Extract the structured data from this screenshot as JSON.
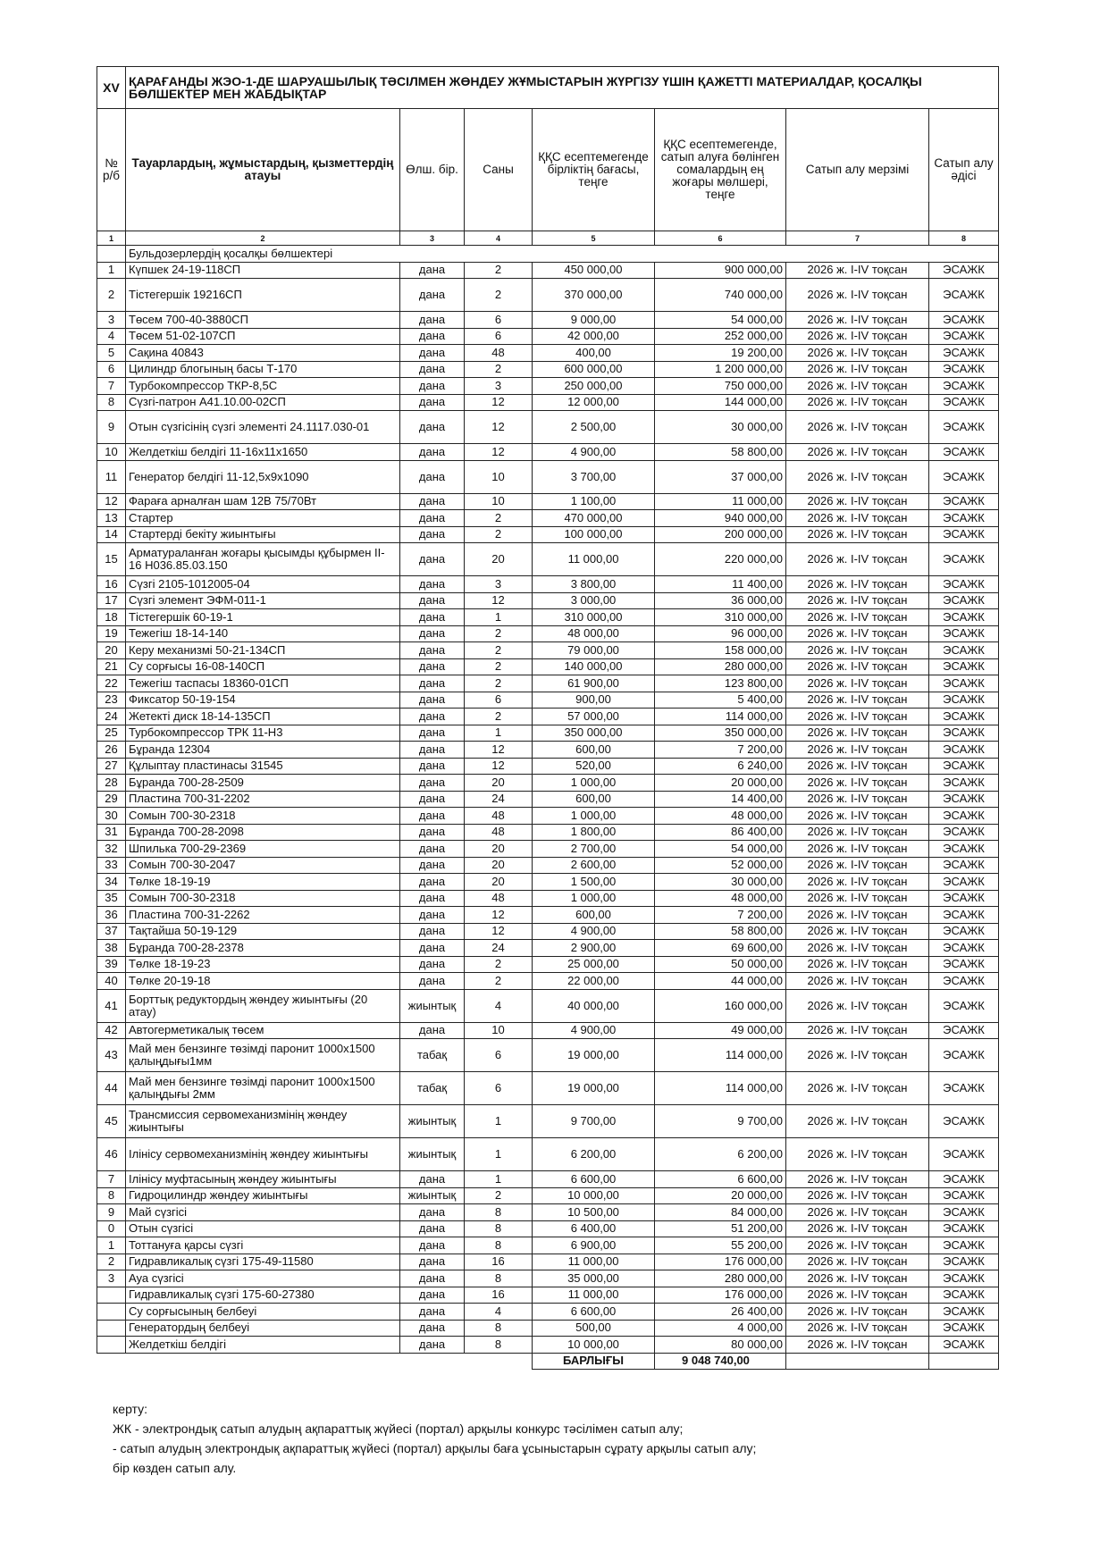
{
  "header": {
    "section_no": "XV",
    "title": "ҚАРАҒАНДЫ ЖЭО-1-ДЕ ШАРУАШЫЛЫҚ ТӘСІЛМЕН ЖӨНДЕУ ЖҰМЫСТАРЫН ЖҮРГІЗУ ҮШІН ҚАЖЕТТІ МАТЕРИАЛДАР, ҚОСАЛҚЫ БӨЛШЕКТЕР МЕН ЖАБДЫҚТАР"
  },
  "table": {
    "columns": [
      "№ р/б",
      "Тауарлардың, жұмыстардың, қызметтердің атауы",
      "Өлш. бір.",
      "Саны",
      "ҚҚС есептемегенде бірліктің бағасы, теңге",
      "ҚҚС есептемегенде, сатып алуға бөлінген сомалардың ең жоғары мөлшері, теңге",
      "Сатып алу мерзімі",
      "Сатып алу әдісі"
    ],
    "column_numbers": [
      "1",
      "2",
      "3",
      "4",
      "5",
      "6",
      "7",
      "8"
    ],
    "section": "Бульдозерлердің қосалқы бөлшектері",
    "rows": [
      [
        "1",
        "Күпшек 24-19-118СП",
        "дана",
        "2",
        "450 000,00",
        "900 000,00",
        "2026 ж. I-IV тоқсан",
        "ЭСАЖК"
      ],
      [
        "2",
        "Тістегершік 19216СП",
        "дана",
        "2",
        "370 000,00",
        "740 000,00",
        "2026 ж. I-IV тоқсан",
        "ЭСАЖК"
      ],
      [
        "3",
        "Төсем 700-40-3880СП",
        "дана",
        "6",
        "9 000,00",
        "54 000,00",
        "2026 ж. I-IV тоқсан",
        "ЭСАЖК"
      ],
      [
        "4",
        "Төсем 51-02-107СП",
        "дана",
        "6",
        "42 000,00",
        "252 000,00",
        "2026 ж. I-IV тоқсан",
        "ЭСАЖК"
      ],
      [
        "5",
        "Сақина 40843",
        "дана",
        "48",
        "400,00",
        "19 200,00",
        "2026 ж. I-IV тоқсан",
        "ЭСАЖК"
      ],
      [
        "6",
        "Цилиндр блогының басы Т-170",
        "дана",
        "2",
        "600 000,00",
        "1 200 000,00",
        "2026 ж. I-IV тоқсан",
        "ЭСАЖК"
      ],
      [
        "7",
        "Турбокомпрессор ТКР-8,5С",
        "дана",
        "3",
        "250 000,00",
        "750 000,00",
        "2026 ж. I-IV тоқсан",
        "ЭСАЖК"
      ],
      [
        "8",
        "Сүзгі-патрон А41.10.00-02СП",
        "дана",
        "12",
        "12 000,00",
        "144 000,00",
        "2026 ж. I-IV тоқсан",
        "ЭСАЖК"
      ],
      [
        "9",
        "Отын сүзгісінің сүзгі элементі 24.1117.030-01",
        "дана",
        "12",
        "2 500,00",
        "30 000,00",
        "2026 ж. I-IV тоқсан",
        "ЭСАЖК"
      ],
      [
        "10",
        "Желдеткіш белдігі 11-16х11х1650",
        "дана",
        "12",
        "4 900,00",
        "58 800,00",
        "2026 ж. I-IV тоқсан",
        "ЭСАЖК"
      ],
      [
        "11",
        "Генератор белдігі 11-12,5х9х1090",
        "дана",
        "10",
        "3 700,00",
        "37 000,00",
        "2026 ж. I-IV тоқсан",
        "ЭСАЖК"
      ],
      [
        "12",
        "Фараға арналған шам 12В 75/70Вт",
        "дана",
        "10",
        "1 100,00",
        "11 000,00",
        "2026 ж. I-IV тоқсан",
        "ЭСАЖК"
      ],
      [
        "13",
        "Стартер",
        "дана",
        "2",
        "470 000,00",
        "940 000,00",
        "2026 ж. I-IV тоқсан",
        "ЭСАЖК"
      ],
      [
        "14",
        "Стартерді бекіту жиынтығы",
        "дана",
        "2",
        "100 000,00",
        "200 000,00",
        "2026 ж. I-IV тоқсан",
        "ЭСАЖК"
      ],
      [
        "15",
        "Арматураланған жоғары қысымды құбырмен II-16 Н036.85.03.150",
        "дана",
        "20",
        "11 000,00",
        "220 000,00",
        "2026 ж. I-IV тоқсан",
        "ЭСАЖК"
      ],
      [
        "16",
        "Сүзгі 2105-1012005-04",
        "дана",
        "3",
        "3 800,00",
        "11 400,00",
        "2026 ж. I-IV тоқсан",
        "ЭСАЖК"
      ],
      [
        "17",
        "Сүзгі элемент ЭФМ-011-1",
        "дана",
        "12",
        "3 000,00",
        "36 000,00",
        "2026 ж. I-IV тоқсан",
        "ЭСАЖК"
      ],
      [
        "18",
        "Тістегершік 60-19-1",
        "дана",
        "1",
        "310 000,00",
        "310 000,00",
        "2026 ж. I-IV тоқсан",
        "ЭСАЖК"
      ],
      [
        "19",
        "Тежегіш 18-14-140",
        "дана",
        "2",
        "48 000,00",
        "96 000,00",
        "2026 ж. I-IV тоқсан",
        "ЭСАЖК"
      ],
      [
        "20",
        "Керу механизмі 50-21-134СП",
        "дана",
        "2",
        "79 000,00",
        "158 000,00",
        "2026 ж. I-IV тоқсан",
        "ЭСАЖК"
      ],
      [
        "21",
        "Су сорғысы 16-08-140СП",
        "дана",
        "2",
        "140 000,00",
        "280 000,00",
        "2026 ж. I-IV тоқсан",
        "ЭСАЖК"
      ],
      [
        "22",
        "Тежегіш таспасы 18360-01СП",
        "дана",
        "2",
        "61 900,00",
        "123 800,00",
        "2026 ж. I-IV тоқсан",
        "ЭСАЖК"
      ],
      [
        "23",
        "Фиксатор 50-19-154",
        "дана",
        "6",
        "900,00",
        "5 400,00",
        "2026 ж. I-IV тоқсан",
        "ЭСАЖК"
      ],
      [
        "24",
        "Жетекті диск 18-14-135СП",
        "дана",
        "2",
        "57 000,00",
        "114 000,00",
        "2026 ж. I-IV тоқсан",
        "ЭСАЖК"
      ],
      [
        "25",
        "Турбокомпрессор ТРК 11-Н3",
        "дана",
        "1",
        "350 000,00",
        "350 000,00",
        "2026 ж. I-IV тоқсан",
        "ЭСАЖК"
      ],
      [
        "26",
        "Бұранда 12304",
        "дана",
        "12",
        "600,00",
        "7 200,00",
        "2026 ж. I-IV тоқсан",
        "ЭСАЖК"
      ],
      [
        "27",
        "Құлыптау пластинасы 31545",
        "дана",
        "12",
        "520,00",
        "6 240,00",
        "2026 ж. I-IV тоқсан",
        "ЭСАЖК"
      ],
      [
        "28",
        "Бұранда 700-28-2509",
        "дана",
        "20",
        "1 000,00",
        "20 000,00",
        "2026 ж. I-IV тоқсан",
        "ЭСАЖК"
      ],
      [
        "29",
        "Пластина 700-31-2202",
        "дана",
        "24",
        "600,00",
        "14 400,00",
        "2026 ж. I-IV тоқсан",
        "ЭСАЖК"
      ],
      [
        "30",
        "Сомын 700-30-2318",
        "дана",
        "48",
        "1 000,00",
        "48 000,00",
        "2026 ж. I-IV тоқсан",
        "ЭСАЖК"
      ],
      [
        "31",
        "Бұранда 700-28-2098",
        "дана",
        "48",
        "1 800,00",
        "86 400,00",
        "2026 ж. I-IV тоқсан",
        "ЭСАЖК"
      ],
      [
        "32",
        "Шпилька 700-29-2369",
        "дана",
        "20",
        "2 700,00",
        "54 000,00",
        "2026 ж. I-IV тоқсан",
        "ЭСАЖК"
      ],
      [
        "33",
        "Сомын 700-30-2047",
        "дана",
        "20",
        "2 600,00",
        "52 000,00",
        "2026 ж. I-IV тоқсан",
        "ЭСАЖК"
      ],
      [
        "34",
        "Төлке 18-19-19",
        "дана",
        "20",
        "1 500,00",
        "30 000,00",
        "2026 ж. I-IV тоқсан",
        "ЭСАЖК"
      ],
      [
        "35",
        "Сомын 700-30-2318",
        "дана",
        "48",
        "1 000,00",
        "48 000,00",
        "2026 ж. I-IV тоқсан",
        "ЭСАЖК"
      ],
      [
        "36",
        "Пластина 700-31-2262",
        "дана",
        "12",
        "600,00",
        "7 200,00",
        "2026 ж. I-IV тоқсан",
        "ЭСАЖК"
      ],
      [
        "37",
        "Тақтайша 50-19-129",
        "дана",
        "12",
        "4 900,00",
        "58 800,00",
        "2026 ж. I-IV тоқсан",
        "ЭСАЖК"
      ],
      [
        "38",
        "Бұранда 700-28-2378",
        "дана",
        "24",
        "2 900,00",
        "69 600,00",
        "2026 ж. I-IV тоқсан",
        "ЭСАЖК"
      ],
      [
        "39",
        "Төлке 18-19-23",
        "дана",
        "2",
        "25 000,00",
        "50 000,00",
        "2026 ж. I-IV тоқсан",
        "ЭСАЖК"
      ],
      [
        "40",
        "Төлке 20-19-18",
        "дана",
        "2",
        "22 000,00",
        "44 000,00",
        "2026 ж. I-IV тоқсан",
        "ЭСАЖК"
      ],
      [
        "41",
        "Борттық редуктордың жөндеу жиынтығы (20 атау)",
        "жиынтық",
        "4",
        "40 000,00",
        "160 000,00",
        "2026 ж. I-IV тоқсан",
        "ЭСАЖК"
      ],
      [
        "42",
        "Автогерметикалық төсем",
        "дана",
        "10",
        "4 900,00",
        "49 000,00",
        "2026 ж. I-IV тоқсан",
        "ЭСАЖК"
      ],
      [
        "43",
        "Май мен бензинге төзімді паронит 1000х1500 қалыңдығы1мм",
        "табақ",
        "6",
        "19 000,00",
        "114 000,00",
        "2026 ж. I-IV тоқсан",
        "ЭСАЖК"
      ],
      [
        "44",
        "Май мен бензинге төзімді паронит 1000х1500 қалыңдығы 2мм",
        "табақ",
        "6",
        "19 000,00",
        "114 000,00",
        "2026 ж. I-IV тоқсан",
        "ЭСАЖК"
      ],
      [
        "45",
        "Трансмиссия сервомеханизмінің жөндеу жиынтығы",
        "жиынтық",
        "1",
        "9 700,00",
        "9 700,00",
        "2026 ж. I-IV тоқсан",
        "ЭСАЖК"
      ],
      [
        "46",
        "Ілінісу сервомеханизмінің жөндеу жиынтығы",
        "жиынтық",
        "1",
        "6 200,00",
        "6 200,00",
        "2026 ж. I-IV тоқсан",
        "ЭСАЖК"
      ],
      [
        "7",
        "Ілінісу муфтасының жөндеу жиынтығы",
        "дана",
        "1",
        "6 600,00",
        "6 600,00",
        "2026 ж. I-IV тоқсан",
        "ЭСАЖК"
      ],
      [
        "8",
        "Гидроцилиндр жөндеу жиынтығы",
        "жиынтық",
        "2",
        "10 000,00",
        "20 000,00",
        "2026 ж. I-IV тоқсан",
        "ЭСАЖК"
      ],
      [
        "9",
        "Май сүзгісі",
        "дана",
        "8",
        "10 500,00",
        "84 000,00",
        "2026 ж. I-IV тоқсан",
        "ЭСАЖК"
      ],
      [
        "0",
        "Отын сүзгісі",
        "дана",
        "8",
        "6 400,00",
        "51 200,00",
        "2026 ж. I-IV тоқсан",
        "ЭСАЖК"
      ],
      [
        "1",
        "Тоттануға қарсы сүзгі",
        "дана",
        "8",
        "6 900,00",
        "55 200,00",
        "2026 ж. I-IV тоқсан",
        "ЭСАЖК"
      ],
      [
        "2",
        "Гидравликалық сүзгі 175-49-11580",
        "дана",
        "16",
        "11 000,00",
        "176 000,00",
        "2026 ж. I-IV тоқсан",
        "ЭСАЖК"
      ],
      [
        "3",
        "Ауа сүзгісі",
        "дана",
        "8",
        "35 000,00",
        "280 000,00",
        "2026 ж. I-IV тоқсан",
        "ЭСАЖК"
      ],
      [
        null,
        "Гидравликалық сүзгі 175-60-27380",
        "дана",
        "16",
        "11 000,00",
        "176 000,00",
        "2026 ж. I-IV тоқсан",
        "ЭСАЖК"
      ],
      [
        null,
        "Су сорғысының белбеуі",
        "дана",
        "4",
        "6 600,00",
        "26 400,00",
        "2026 ж. I-IV тоқсан",
        "ЭСАЖК"
      ],
      [
        null,
        "Генератордың белбеуі",
        "дана",
        "8",
        "500,00",
        "4 000,00",
        "2026 ж. I-IV тоқсан",
        "ЭСАЖК"
      ],
      [
        null,
        "Желдеткіш белдігі",
        "дана",
        "8",
        "10 000,00",
        "80 000,00",
        "2026 ж. I-IV тоқсан",
        "ЭСАЖК"
      ]
    ],
    "total_label": "БАРЛЫҒЫ",
    "total_value": "9 048 740,00"
  },
  "notes": {
    "heading": "керту:",
    "lines": [
      "ЖК - электрондық сатып алудың ақпараттық жүйесі (портал) арқылы конкурс тәсілімен сатып алу;",
      "- сатып алудың электрондық ақпараттық жүйесі (портал) арқылы баға ұсыныстарын сұрату арқылы сатып алу;",
      "бір көзден сатып алу."
    ]
  }
}
